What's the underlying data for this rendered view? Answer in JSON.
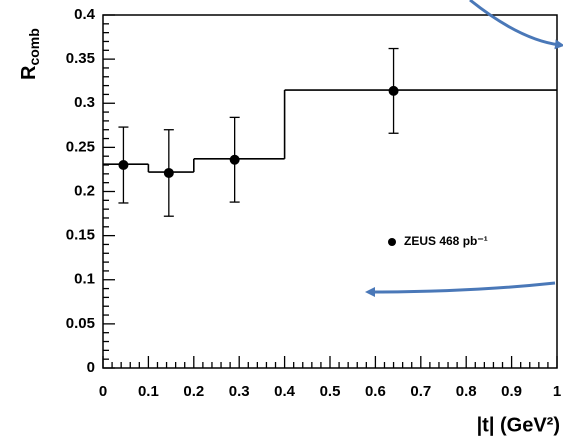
{
  "chart_data": {
    "type": "scatter",
    "x_label": "|t| (GeV²)",
    "y_label": {
      "text": "R",
      "subscript": "comb"
    },
    "series": [
      {
        "name": "ZEUS 468 pb⁻¹",
        "color": "#000000",
        "x": [
          0.045,
          0.145,
          0.29,
          0.64
        ],
        "values": [
          0.23,
          0.221,
          0.236,
          0.314
        ],
        "errors": [
          0.043,
          0.049,
          0.048,
          0.048
        ]
      }
    ],
    "step": {
      "bins": [
        0,
        0.1,
        0.2,
        0.4,
        1
      ],
      "values": [
        0.231,
        0.222,
        0.237,
        0.315
      ],
      "color": "#000000"
    },
    "xlim": [
      0,
      1
    ],
    "ylim": [
      0,
      0.4
    ],
    "xticks": [
      0,
      0.1,
      0.2,
      0.3,
      0.4,
      0.5,
      0.6,
      0.7,
      0.8,
      0.9,
      1
    ],
    "yticks": [
      0,
      0.05,
      0.1,
      0.15,
      0.2,
      0.25,
      0.3,
      0.35,
      0.4
    ],
    "legend": "right"
  }
}
